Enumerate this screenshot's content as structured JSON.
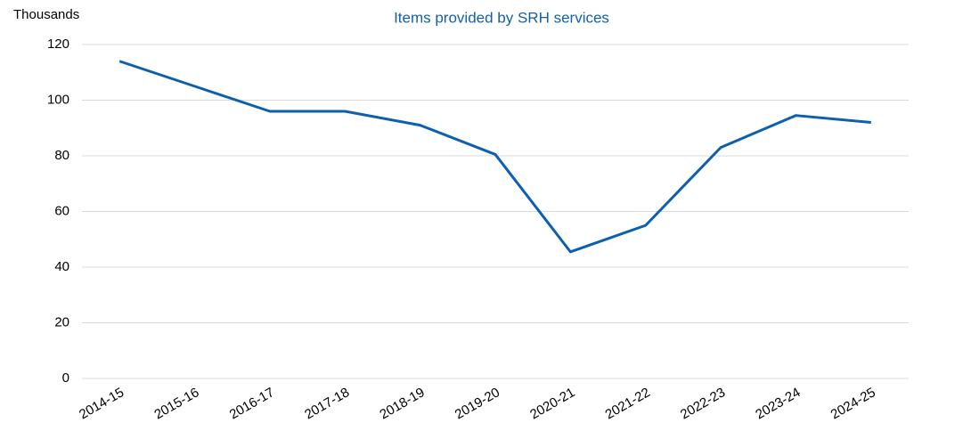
{
  "chart_data": {
    "type": "line",
    "title": "Items provided by SRH services",
    "y_label": "Thousands",
    "categories": [
      "2014-15",
      "2015-16",
      "2016-17",
      "2017-18",
      "2018-19",
      "2019-20",
      "2020-21",
      "2021-22",
      "2022-23",
      "2023-24",
      "2024-25"
    ],
    "series": [
      {
        "name": "Items provided",
        "color": "#0d5fb0",
        "values": [
          114,
          105,
          96,
          96,
          91,
          80.5,
          45.5,
          55,
          83,
          94.5,
          92
        ]
      }
    ],
    "ylim": [
      0,
      120
    ],
    "yticks": [
      0,
      20,
      40,
      60,
      80,
      100,
      120
    ],
    "grid": true,
    "legend": false
  }
}
